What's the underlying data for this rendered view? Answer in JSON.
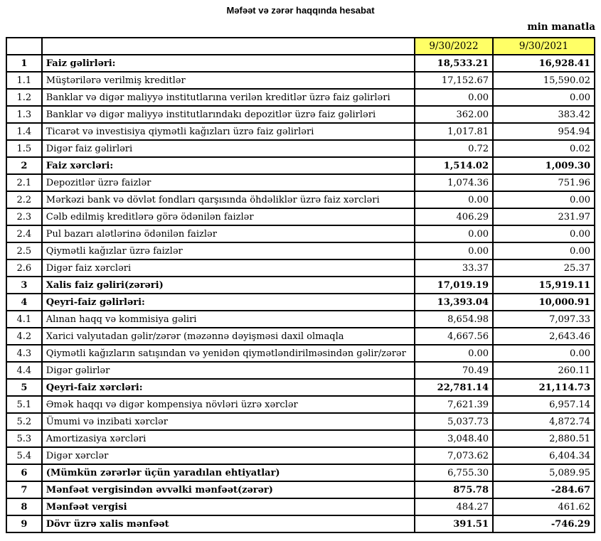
{
  "title": "Məfəət və zərər haqqında hesabat",
  "unit_note": "min manatla",
  "colors": {
    "header_highlight": "#FFFF66",
    "border": "#000000",
    "page_background": "#FFFFFF"
  },
  "table": {
    "col_headers": [
      "9/30/2022",
      "9/30/2021"
    ],
    "rows": [
      {
        "no": "1",
        "label": "Faiz gəlirləri:",
        "v2022": "18,533.21",
        "v2021": "16,928.41",
        "label_bold": true,
        "value_bold": true
      },
      {
        "no": "1.1",
        "label": "Müştərilərə verilmiş kreditlər",
        "v2022": "17,152.67",
        "v2021": "15,590.02",
        "label_bold": false,
        "value_bold": false
      },
      {
        "no": "1.2",
        "label": "Banklar və digər maliyyə institutlarına verilən kreditlər üzrə faiz gəlirləri",
        "v2022": "0.00",
        "v2021": "0.00",
        "label_bold": false,
        "value_bold": false
      },
      {
        "no": "1.3",
        "label": "Banklar və digər maliyyə institutlarındakı depozitlər üzrə faiz gəlirləri",
        "v2022": "362.00",
        "v2021": "383.42",
        "label_bold": false,
        "value_bold": false
      },
      {
        "no": "1.4",
        "label": "Ticarət və investisiya qiymətli kağızları üzrə faiz gəlirləri",
        "v2022": "1,017.81",
        "v2021": "954.94",
        "label_bold": false,
        "value_bold": false
      },
      {
        "no": "1.5",
        "label": "Digər faiz gəlirləri",
        "v2022": "0.72",
        "v2021": "0.02",
        "label_bold": false,
        "value_bold": false
      },
      {
        "no": "2",
        "label": "Faiz xərcləri:",
        "v2022": "1,514.02",
        "v2021": "1,009.30",
        "label_bold": true,
        "value_bold": true
      },
      {
        "no": "2.1",
        "label": "Depozitlər üzrə faizlər",
        "v2022": "1,074.36",
        "v2021": "751.96",
        "label_bold": false,
        "value_bold": false
      },
      {
        "no": "2.2",
        "label": "Mərkəzi bank və dövlət fondları qarşısında öhdəliklər üzrə faiz xərcləri",
        "v2022": "0.00",
        "v2021": "0.00",
        "label_bold": false,
        "value_bold": false
      },
      {
        "no": "2.3",
        "label": "Cəlb edilmiş kreditlərə görə ödənilən faizlər",
        "v2022": "406.29",
        "v2021": "231.97",
        "label_bold": false,
        "value_bold": false
      },
      {
        "no": "2.4",
        "label": "Pul bazarı alətlərinə ödənilən faizlər",
        "v2022": "0.00",
        "v2021": "0.00",
        "label_bold": false,
        "value_bold": false
      },
      {
        "no": "2.5",
        "label": "Qiymətli kağızlar üzrə faizlər",
        "v2022": "0.00",
        "v2021": "0.00",
        "label_bold": false,
        "value_bold": false
      },
      {
        "no": "2.6",
        "label": "Digər faiz xərcləri",
        "v2022": "33.37",
        "v2021": "25.37",
        "label_bold": false,
        "value_bold": false
      },
      {
        "no": "3",
        "label": "Xalis faiz gəliri(zərəri)",
        "v2022": "17,019.19",
        "v2021": "15,919.11",
        "label_bold": true,
        "value_bold": true
      },
      {
        "no": "4",
        "label": "Qeyri-faiz gəlirləri:",
        "v2022": "13,393.04",
        "v2021": "10,000.91",
        "label_bold": true,
        "value_bold": true
      },
      {
        "no": "4.1",
        "label": "Alınan haqq və kommisiya gəliri",
        "v2022": "8,654.98",
        "v2021": "7,097.33",
        "label_bold": false,
        "value_bold": false
      },
      {
        "no": "4.2",
        "label": "Xarici valyutadan gəlir/zərər (məzənnə dəyişməsi daxil olmaqla",
        "v2022": "4,667.56",
        "v2021": "2,643.46",
        "label_bold": false,
        "value_bold": false
      },
      {
        "no": "4.3",
        "label": "Qiymətli kağızların satışından və yenidən qiymətləndirilməsindən gəlir/zərər",
        "v2022": "0.00",
        "v2021": "0.00",
        "label_bold": false,
        "value_bold": false
      },
      {
        "no": "4.4",
        "label": "Digər gəlirlər",
        "v2022": "70.49",
        "v2021": "260.11",
        "label_bold": false,
        "value_bold": false
      },
      {
        "no": "5",
        "label": "Qeyri-faiz xərcləri:",
        "v2022": "22,781.14",
        "v2021": "21,114.73",
        "label_bold": true,
        "value_bold": true
      },
      {
        "no": "5.1",
        "label": "Əmək haqqı və digər kompensiya növləri üzrə xərclər",
        "v2022": "7,621.39",
        "v2021": "6,957.14",
        "label_bold": false,
        "value_bold": false
      },
      {
        "no": "5.2",
        "label": "Ümumi və inzibati xərclər",
        "v2022": "5,037.73",
        "v2021": "4,872.74",
        "label_bold": false,
        "value_bold": false
      },
      {
        "no": "5.3",
        "label": "Amortizasiya xərcləri",
        "v2022": "3,048.40",
        "v2021": "2,880.51",
        "label_bold": false,
        "value_bold": false
      },
      {
        "no": "5.4",
        "label": "Digər xərclər",
        "v2022": "7,073.62",
        "v2021": "6,404.34",
        "label_bold": false,
        "value_bold": false
      },
      {
        "no": "6",
        "label": "(Mümkün zərərlər üçün yaradılan ehtiyatlar)",
        "v2022": "6,755.30",
        "v2021": "5,089.95",
        "label_bold": true,
        "value_bold": false
      },
      {
        "no": "7",
        "label": "Mənfəət vergisindən əvvəlki mənfəət(zərər)",
        "v2022": "875.78",
        "v2021": "-284.67",
        "label_bold": true,
        "value_bold": true
      },
      {
        "no": "8",
        "label": "Mənfəət vergisi",
        "v2022": "484.27",
        "v2021": "461.62",
        "label_bold": true,
        "value_bold": false
      },
      {
        "no": "9",
        "label": "Dövr üzrə xalis mənfəət",
        "v2022": "391.51",
        "v2021": "-746.29",
        "label_bold": true,
        "value_bold": true
      }
    ]
  }
}
